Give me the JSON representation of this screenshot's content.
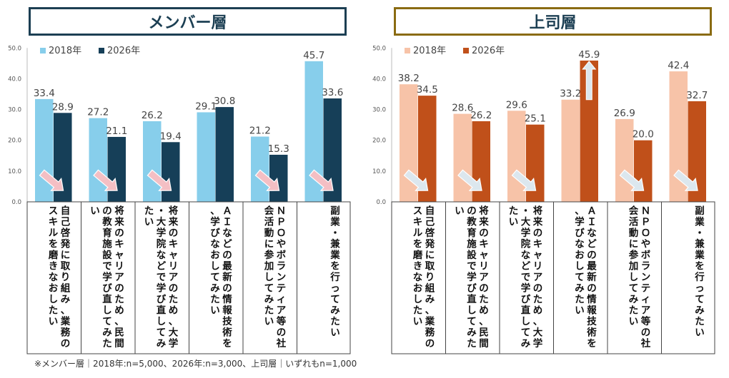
{
  "footnote": "※メンバー層｜2018年:n=5,000、2026年:n=3,000、上司層｜いずれもn=1,000",
  "chart_data": [
    {
      "type": "bar",
      "title": "メンバー層",
      "ylim": [
        0,
        50
      ],
      "yticks": [
        "0.0",
        "10.0",
        "20.0",
        "30.0",
        "40.0",
        "50.0"
      ],
      "categories": [
        "自己啓発に取り組み、業務のスキルを磨きなおしたい",
        "将来のキャリアのため、民間の教育施設で学び直してみたい",
        "将来のキャリアのため、大学・大学院などで学び直してみたい",
        "ＡＩなどの最新の情報技術を、学びなおしてみたい",
        "ＮＰＯやボランティア等の社会活動に参加してみたい",
        "副業・兼業を行ってみたい"
      ],
      "series": [
        {
          "name": "2018年",
          "color": "#87ceeb",
          "values": [
            33.4,
            27.2,
            26.2,
            29.1,
            21.2,
            45.7
          ]
        },
        {
          "name": "2026年",
          "color": "#163f58",
          "values": [
            28.9,
            21.1,
            19.4,
            30.8,
            15.3,
            33.6
          ]
        }
      ],
      "trend_arrows": [
        "down",
        "down",
        "down",
        "none",
        "down",
        "down"
      ],
      "arrow_color": "#f4bfc4",
      "grid": false,
      "legend": "top-left"
    },
    {
      "type": "bar",
      "title": "上司層",
      "ylim": [
        0,
        50
      ],
      "yticks": [
        "0.0",
        "10.0",
        "20.0",
        "30.0",
        "40.0",
        "50.0"
      ],
      "categories": [
        "自己啓発に取り組み、業務のスキルを磨きなおしたい",
        "将来のキャリアのため、民間の教育施設で学び直してみたい",
        "将来のキャリアのため、大学・大学院などで学び直してみたい",
        "ＡＩなどの最新の情報技術を、学びなおしてみたい",
        "ＮＰＯやボランティア等の社会活動に参加してみたい",
        "副業・兼業を行ってみたい"
      ],
      "series": [
        {
          "name": "2018年",
          "color": "#f7c3a8",
          "values": [
            38.2,
            28.6,
            29.6,
            33.2,
            26.9,
            42.4
          ]
        },
        {
          "name": "2026年",
          "color": "#c0501a",
          "values": [
            34.5,
            26.2,
            25.1,
            45.9,
            20.0,
            32.7
          ]
        }
      ],
      "trend_arrows": [
        "down",
        "down",
        "down",
        "up",
        "down",
        "down"
      ],
      "arrow_color": "#dce7ee",
      "grid": false,
      "legend": "top-left"
    }
  ]
}
